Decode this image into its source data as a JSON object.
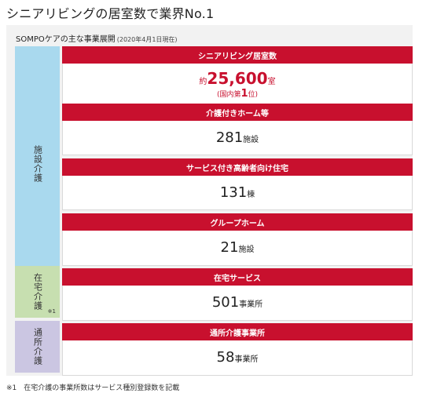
{
  "page_title": "シニアリビングの居室数で業界No.1",
  "subtitle": "SOMPOケアの主な事業展開",
  "subtitle_date": "(2020年4月1日現在)",
  "side_labels": {
    "facility": "施設介護",
    "home": "在宅介護",
    "home_note": "※1",
    "daycare": "通所介護"
  },
  "cards": [
    {
      "title": "シニアリビング居室数",
      "prefix": "約",
      "value": "25,600",
      "unit": "室",
      "rank_pre": "(国内第",
      "rank_num": "1",
      "rank_post": "位)"
    },
    {
      "title": "介護付きホーム等",
      "value": "281",
      "unit": "施設"
    },
    {
      "title": "サービス付き高齢者向け住宅",
      "value": "131",
      "unit": "棟"
    },
    {
      "title": "グループホーム",
      "value": "21",
      "unit": "施設"
    },
    {
      "title": "在宅サービス",
      "value": "501",
      "unit": "事業所"
    },
    {
      "title": "通所介護事業所",
      "value": "58",
      "unit": "事業所"
    }
  ],
  "footnote": "※1　在宅介護の事業所数はサービス種別登録数を記載",
  "colors": {
    "accent_red": "#c8102e",
    "facility_blue": "#a9d9ee",
    "home_green": "#c7dfb0",
    "daycare_purple": "#cbc6e2"
  }
}
